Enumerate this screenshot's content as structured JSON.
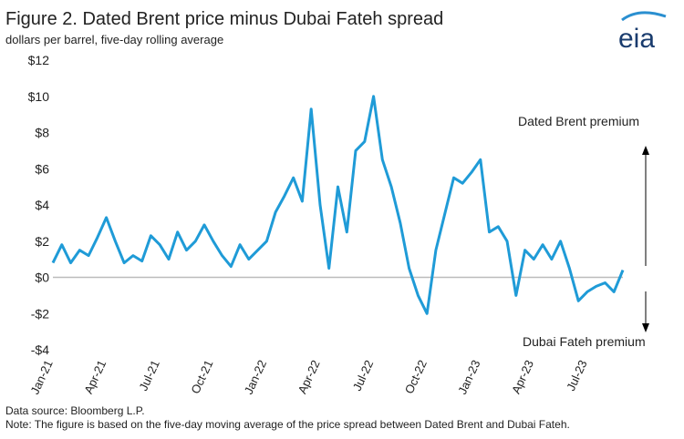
{
  "chart_data": {
    "type": "line",
    "title": "Figure 2. Dated Brent price minus Dubai Fateh spread",
    "subtitle": "dollars per barrel, five-day  rolling average",
    "logo": "eia",
    "annotations": [
      "Dated Brent premium",
      "Dubai Fateh premium"
    ],
    "source": "Data source: Bloomberg L.P.",
    "note": "Note: The  figure is based on the  five-day moving average of the price spread between Dated Brent and Dubai Fateh.",
    "categories": [
      "Jan-21",
      null,
      null,
      null,
      null,
      null,
      "Apr-21",
      null,
      null,
      null,
      null,
      null,
      "Jul-21",
      null,
      null,
      null,
      null,
      null,
      "Oct-21",
      null,
      null,
      null,
      null,
      null,
      "Jan-22",
      null,
      null,
      null,
      null,
      null,
      "Apr-22",
      null,
      null,
      null,
      null,
      null,
      "Jul-22",
      null,
      null,
      null,
      null,
      null,
      "Oct-22",
      null,
      null,
      null,
      null,
      null,
      "Jan-23",
      null,
      null,
      null,
      null,
      null,
      "Apr-23",
      null,
      null,
      null,
      null,
      null,
      "Jul-23",
      null,
      null,
      null,
      null
    ],
    "series": [
      {
        "name": "Dated Brent minus Dubai Fateh",
        "color": "#1f9bd7",
        "values": [
          0.8,
          1.8,
          0.8,
          1.5,
          1.2,
          2.2,
          3.3,
          2.0,
          0.8,
          1.2,
          0.9,
          2.3,
          1.8,
          1.0,
          2.5,
          1.5,
          2.0,
          2.9,
          2.0,
          1.2,
          0.6,
          1.8,
          1.0,
          1.5,
          2.0,
          3.6,
          4.5,
          5.5,
          4.2,
          9.3,
          4.0,
          0.5,
          5.0,
          2.5,
          7.0,
          7.5,
          10.0,
          6.5,
          5.0,
          3.0,
          0.5,
          -1.0,
          -2.0,
          1.5,
          3.5,
          5.5,
          5.2,
          5.8,
          6.5,
          2.5,
          2.8,
          2.0,
          -1.0,
          1.5,
          1.0,
          1.8,
          1.0,
          2.0,
          0.5,
          -1.3,
          -0.8,
          -0.5,
          -0.3,
          -0.8,
          0.4
        ]
      }
    ],
    "ylim": [
      -4,
      12
    ],
    "yticks": [
      {
        "value": -4,
        "label": "-$4"
      },
      {
        "value": -2,
        "label": "-$2"
      },
      {
        "value": 0,
        "label": "$0"
      },
      {
        "value": 2,
        "label": "$2"
      },
      {
        "value": 4,
        "label": "$4"
      },
      {
        "value": 6,
        "label": "$6"
      },
      {
        "value": 8,
        "label": "$8"
      },
      {
        "value": 10,
        "label": "$10"
      },
      {
        "value": 12,
        "label": "$12"
      }
    ],
    "grid": false
  }
}
